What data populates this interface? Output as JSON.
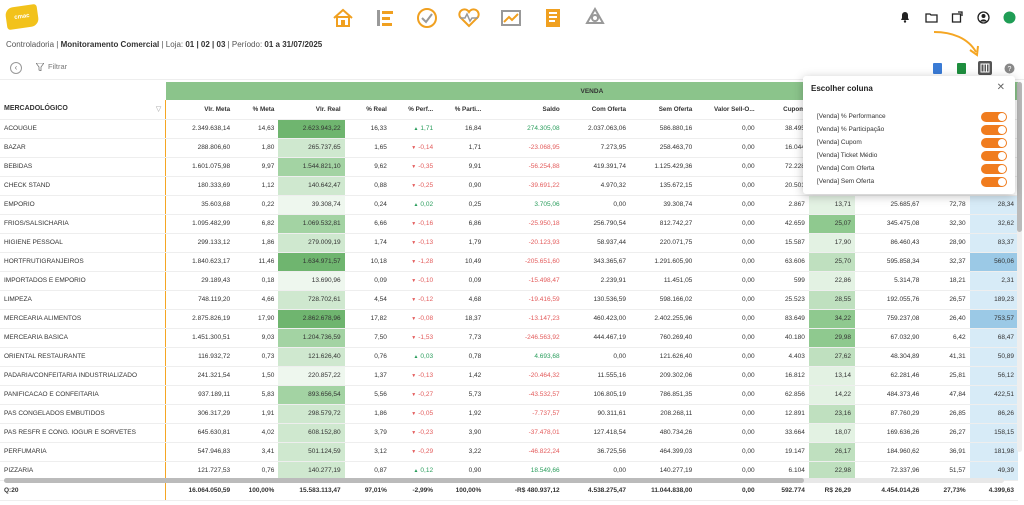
{
  "logo_text": "cmac",
  "nav_icons": [
    "home-icon",
    "list-icon",
    "check-icon",
    "heart-pulse-icon",
    "chart-icon",
    "document-icon",
    "recycle-icon"
  ],
  "right_icons": [
    "bell-icon",
    "folder-icon",
    "share-icon",
    "user-icon",
    "status-dot-icon"
  ],
  "breadcrumb": {
    "root": "Controladoria",
    "sep": " | ",
    "page": "Monitoramento Comercial",
    "loja_label": " | Loja: ",
    "loja": "01 | 02 | 03",
    "periodo_label": " | Período: ",
    "periodo": "01 a 31/07/2025"
  },
  "toolbar": {
    "filter_label": "Filtrar"
  },
  "colors": {
    "accent": "#f07c1e",
    "band": "#8bc48b",
    "positive": "#2a9d5c",
    "negative": "#e35b5b"
  },
  "table": {
    "band_label": "VENDA",
    "columns": [
      "MERCADOLÓGICO",
      "Vlr. Meta",
      "% Meta",
      "Vlr. Real",
      "% Real",
      "% Perf...",
      "% Parti...",
      "Saldo",
      "Com Oferta",
      "Sem Oferta",
      "Valor Sell-O...",
      "Cupom",
      "",
      "",
      "",
      ""
    ],
    "rows": [
      [
        "ACOUGUE",
        "2.349.638,14",
        "14,63",
        "2.623.943,22",
        "16,33",
        "1,71",
        "16,84",
        "274.305,08",
        "2.037.063,06",
        "586.880,16",
        "0,00",
        "38.495",
        "",
        "",
        "",
        ""
      ],
      [
        "BAZAR",
        "288.806,60",
        "1,80",
        "265.737,65",
        "1,65",
        "-0,14",
        "1,71",
        "-23.068,95",
        "7.273,95",
        "258.463,70",
        "0,00",
        "16.044",
        "",
        "",
        "",
        ""
      ],
      [
        "BEBIDAS",
        "1.601.075,98",
        "9,97",
        "1.544.821,10",
        "9,62",
        "-0,35",
        "9,91",
        "-56.254,88",
        "419.391,74",
        "1.125.429,36",
        "0,00",
        "72.228",
        "",
        "",
        "",
        ""
      ],
      [
        "CHECK STAND",
        "180.333,69",
        "1,12",
        "140.642,47",
        "0,88",
        "-0,25",
        "0,90",
        "-39.691,22",
        "4.970,32",
        "135.672,15",
        "0,00",
        "20.501",
        "",
        "",
        "",
        ""
      ],
      [
        "EMPORIO",
        "35.603,68",
        "0,22",
        "39.308,74",
        "0,24",
        "0,02",
        "0,25",
        "3.705,06",
        "0,00",
        "39.308,74",
        "0,00",
        "2.867",
        "13,71",
        "25.685,67",
        "72,78",
        "28,34"
      ],
      [
        "FRIOS/SALSICHARIA",
        "1.095.482,99",
        "6,82",
        "1.069.532,81",
        "6,66",
        "-0,16",
        "6,86",
        "-25.950,18",
        "256.790,54",
        "812.742,27",
        "0,00",
        "42.659",
        "25,07",
        "345.475,08",
        "32,30",
        "32,62"
      ],
      [
        "HIGIENE PESSOAL",
        "299.133,12",
        "1,86",
        "279.009,19",
        "1,74",
        "-0,13",
        "1,79",
        "-20.123,93",
        "58.937,44",
        "220.071,75",
        "0,00",
        "15.587",
        "17,90",
        "86.460,43",
        "28,90",
        "83,37"
      ],
      [
        "HORTFRUTIGRANJEIROS",
        "1.840.623,17",
        "11,46",
        "1.634.971,57",
        "10,18",
        "-1,28",
        "10,49",
        "-205.651,60",
        "343.365,67",
        "1.291.605,90",
        "0,00",
        "63.606",
        "25,70",
        "595.858,34",
        "32,37",
        "560,06"
      ],
      [
        "IMPORTADOS E EMPORIO",
        "29.189,43",
        "0,18",
        "13.690,96",
        "0,09",
        "-0,10",
        "0,09",
        "-15.498,47",
        "2.239,91",
        "11.451,05",
        "0,00",
        "599",
        "22,86",
        "5.314,78",
        "18,21",
        "2,31"
      ],
      [
        "LIMPEZA",
        "748.119,20",
        "4,66",
        "728.702,61",
        "4,54",
        "-0,12",
        "4,68",
        "-19.416,59",
        "130.536,59",
        "598.166,02",
        "0,00",
        "25.523",
        "28,55",
        "192.055,76",
        "26,57",
        "189,23"
      ],
      [
        "MERCEARIA ALIMENTOS",
        "2.875.826,19",
        "17,90",
        "2.862.678,96",
        "17,82",
        "-0,08",
        "18,37",
        "-13.147,23",
        "460.423,00",
        "2.402.255,96",
        "0,00",
        "83.649",
        "34,22",
        "759.237,08",
        "26,40",
        "753,57"
      ],
      [
        "MERCEARIA BASICA",
        "1.451.300,51",
        "9,03",
        "1.204.736,59",
        "7,50",
        "-1,53",
        "7,73",
        "-246.563,92",
        "444.467,19",
        "760.269,40",
        "0,00",
        "40.180",
        "29,98",
        "67.032,90",
        "6,42",
        "68,47"
      ],
      [
        "ORIENTAL RESTAURANTE",
        "116.932,72",
        "0,73",
        "121.626,40",
        "0,76",
        "0,03",
        "0,78",
        "4.693,68",
        "0,00",
        "121.626,40",
        "0,00",
        "4.403",
        "27,62",
        "48.304,89",
        "41,31",
        "50,89"
      ],
      [
        "PADARIA/CONFEITARIA INDUSTRIALIZADO",
        "241.321,54",
        "1,50",
        "220.857,22",
        "1,37",
        "-0,13",
        "1,42",
        "-20.464,32",
        "11.555,16",
        "209.302,06",
        "0,00",
        "16.812",
        "13,14",
        "62.281,46",
        "25,81",
        "56,12"
      ],
      [
        "PANIFICACAO E CONFEITARIA",
        "937.189,11",
        "5,83",
        "893.656,54",
        "5,56",
        "-0,27",
        "5,73",
        "-43.532,57",
        "106.805,19",
        "786.851,35",
        "0,00",
        "62.856",
        "14,22",
        "484.373,46",
        "47,84",
        "422,51"
      ],
      [
        "PAS CONGELADOS EMBUTIDOS",
        "306.317,29",
        "1,91",
        "298.579,72",
        "1,86",
        "-0,05",
        "1,92",
        "-7.737,57",
        "90.311,61",
        "208.268,11",
        "0,00",
        "12.891",
        "23,16",
        "87.760,29",
        "26,85",
        "86,26"
      ],
      [
        "PAS RESFR E CONG. IOGUR E SORVETES",
        "645.630,81",
        "4,02",
        "608.152,80",
        "3,79",
        "-0,23",
        "3,90",
        "-37.478,01",
        "127.418,54",
        "480.734,26",
        "0,00",
        "33.664",
        "18,07",
        "169.636,26",
        "26,27",
        "158,15"
      ],
      [
        "PERFUMARIA",
        "547.946,83",
        "3,41",
        "501.124,59",
        "3,12",
        "-0,29",
        "3,22",
        "-46.822,24",
        "36.725,56",
        "464.399,03",
        "0,00",
        "19.147",
        "26,17",
        "184.960,62",
        "36,91",
        "181,98"
      ],
      [
        "PIZZARIA",
        "121.727,53",
        "0,76",
        "140.277,19",
        "0,87",
        "0,12",
        "0,90",
        "18.549,66",
        "0,00",
        "140.277,19",
        "0,00",
        "6.104",
        "22,98",
        "72.337,96",
        "51,57",
        "49,39"
      ]
    ],
    "row_classes": [
      [
        "real1",
        "cup0",
        "last0"
      ],
      [
        "real3",
        "cup0",
        "last0"
      ],
      [
        "real2",
        "cup0",
        "last0"
      ],
      [
        "real3",
        "cup0",
        "last0"
      ],
      [
        "real4",
        "cup3",
        "last2"
      ],
      [
        "real2",
        "cup1",
        "last2"
      ],
      [
        "real3",
        "cup3",
        "last2"
      ],
      [
        "real1",
        "cup2",
        "last1"
      ],
      [
        "real4",
        "cup3",
        "last2"
      ],
      [
        "real3",
        "cup2",
        "last2"
      ],
      [
        "real1",
        "cup1",
        "last1"
      ],
      [
        "real2",
        "cup1",
        "last2"
      ],
      [
        "real3",
        "cup2",
        "last2"
      ],
      [
        "real4",
        "cup3",
        "last2"
      ],
      [
        "real2",
        "cup3",
        "last2"
      ],
      [
        "real3",
        "cup2",
        "last2"
      ],
      [
        "real3",
        "cup3",
        "last2"
      ],
      [
        "real3",
        "cup2",
        "last2"
      ],
      [
        "real3",
        "cup2",
        "last2"
      ]
    ],
    "total": [
      "Q:20",
      "16.064.050,59",
      "100,00%",
      "15.583.113,47",
      "97,01%",
      "-2,99%",
      "100,00%",
      "-R$ 480.937,12",
      "4.538.275,47",
      "11.044.838,00",
      "0,00",
      "592.774",
      "R$ 26,29",
      "4.454.014,26",
      "27,73%",
      "4.399,63"
    ]
  },
  "panel": {
    "title": "Escolher coluna",
    "items": [
      "[Venda] % Performance",
      "[Venda] % Participação",
      "[Venda] Cupom",
      "[Venda] Ticket Médio",
      "[Venda] Com Oferta",
      "[Venda] Sem Oferta"
    ],
    "toggles_on": [
      true,
      true,
      true,
      true,
      true,
      true
    ]
  }
}
